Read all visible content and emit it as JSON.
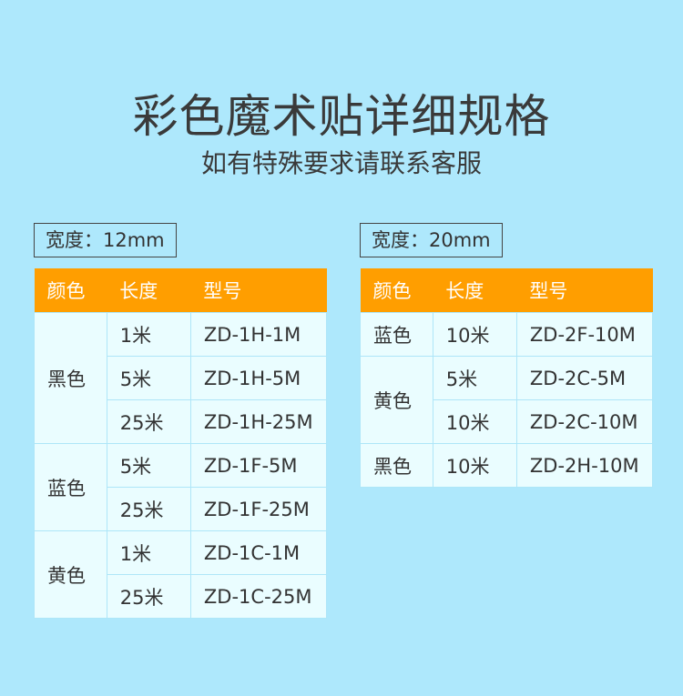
{
  "title": "彩色魔术贴详细规格",
  "subtitle": "如有特殊要求请联系客服",
  "tables": [
    {
      "label": "宽度：12mm",
      "headers": [
        "颜色",
        "长度",
        "型号"
      ],
      "groups": [
        {
          "color": "黑色",
          "rows": [
            [
              "1米",
              "ZD-1H-1M"
            ],
            [
              "5米",
              "ZD-1H-5M"
            ],
            [
              "25米",
              "ZD-1H-25M"
            ]
          ]
        },
        {
          "color": "蓝色",
          "rows": [
            [
              "5米",
              "ZD-1F-5M"
            ],
            [
              "25米",
              "ZD-1F-25M"
            ]
          ]
        },
        {
          "color": "黄色",
          "rows": [
            [
              "1米",
              "ZD-1C-1M"
            ],
            [
              "25米",
              "ZD-1C-25M"
            ]
          ]
        }
      ]
    },
    {
      "label": "宽度：20mm",
      "headers": [
        "颜色",
        "长度",
        "型号"
      ],
      "groups": [
        {
          "color": "蓝色",
          "rows": [
            [
              "10米",
              "ZD-2F-10M"
            ]
          ]
        },
        {
          "color": "黄色",
          "rows": [
            [
              "5米",
              "ZD-2C-5M"
            ],
            [
              "10米",
              "ZD-2C-10M"
            ]
          ]
        },
        {
          "color": "黑色",
          "rows": [
            [
              "10米",
              "ZD-2H-10M"
            ]
          ]
        }
      ]
    }
  ],
  "colors": {
    "background": "#aee8fc",
    "header": "#ff9e00",
    "cell": "#eafdff",
    "border": "#aee6f8"
  }
}
